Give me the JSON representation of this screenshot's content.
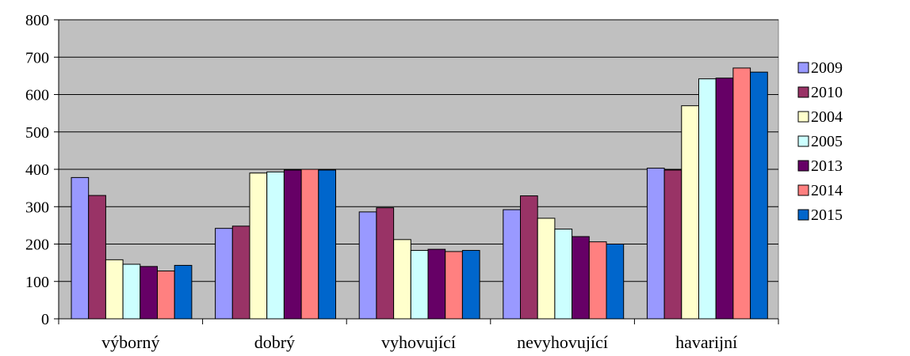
{
  "chart_data": {
    "type": "bar",
    "title": "",
    "xlabel": "",
    "ylabel": "",
    "categories": [
      "výborný",
      "dobrý",
      "vyhovující",
      "nevyhovující",
      "havarijní"
    ],
    "ylim": [
      0,
      800
    ],
    "yticks": [
      0,
      100,
      200,
      300,
      400,
      500,
      600,
      700,
      800
    ],
    "grid": true,
    "legend_position": "right",
    "plot_background": "#c0c0c0",
    "series": [
      {
        "name": "2009",
        "color": "#9999ff",
        "values": [
          378,
          242,
          286,
          292,
          403
        ]
      },
      {
        "name": "2010",
        "color": "#993366",
        "values": [
          330,
          248,
          297,
          329,
          398
        ]
      },
      {
        "name": "2004",
        "color": "#ffffcc",
        "values": [
          158,
          390,
          212,
          269,
          570
        ]
      },
      {
        "name": "2005",
        "color": "#ccffff",
        "values": [
          146,
          393,
          183,
          240,
          642
        ]
      },
      {
        "name": "2013",
        "color": "#660066",
        "values": [
          140,
          398,
          186,
          220,
          644
        ]
      },
      {
        "name": "2014",
        "color": "#ff8080",
        "values": [
          128,
          400,
          180,
          206,
          671
        ]
      },
      {
        "name": "2015",
        "color": "#0066cc",
        "values": [
          143,
          398,
          183,
          200,
          660
        ]
      }
    ]
  }
}
